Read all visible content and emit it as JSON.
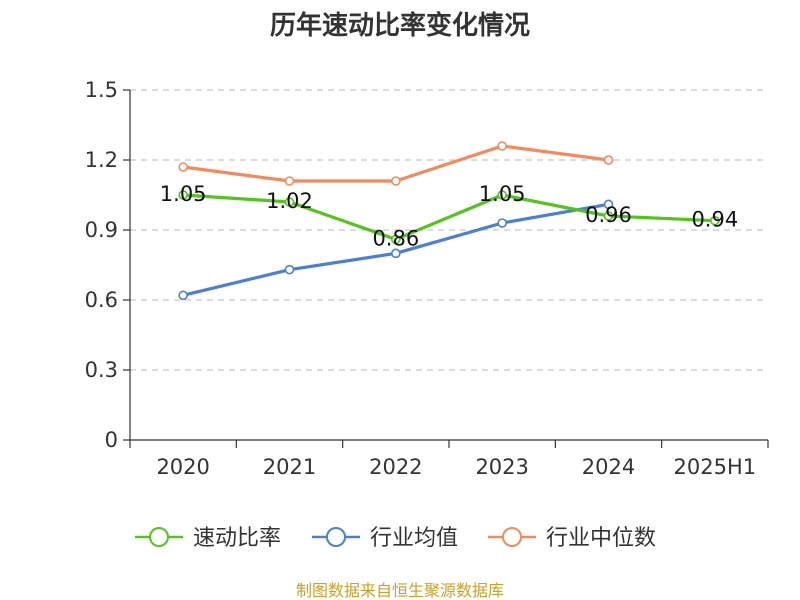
{
  "chart_data": {
    "type": "line",
    "title": "历年速动比率变化情况",
    "categories": [
      "2020",
      "2021",
      "2022",
      "2023",
      "2024",
      "2025H1"
    ],
    "ylim": [
      0,
      1.5
    ],
    "yticks": [
      "0",
      "0.3",
      "0.6",
      "0.9",
      "1.2",
      "1.5"
    ],
    "grid": true,
    "legend_position": "bottom",
    "series": [
      {
        "name": "速动比率",
        "color": "#52c41a",
        "values": [
          1.05,
          1.02,
          0.86,
          1.05,
          0.96,
          0.94
        ],
        "labels": [
          "1.05",
          "1.02",
          "0.86",
          "1.05",
          "0.96",
          "0.94"
        ]
      },
      {
        "name": "行业均值",
        "color": "#4a7fd6",
        "values": [
          0.62,
          0.73,
          0.8,
          0.93,
          1.01,
          null
        ]
      },
      {
        "name": "行业中位数",
        "color": "#f5895a",
        "values": [
          1.17,
          1.11,
          1.11,
          1.26,
          1.2,
          null
        ]
      }
    ]
  },
  "source": "制图数据来自恒生聚源数据库"
}
